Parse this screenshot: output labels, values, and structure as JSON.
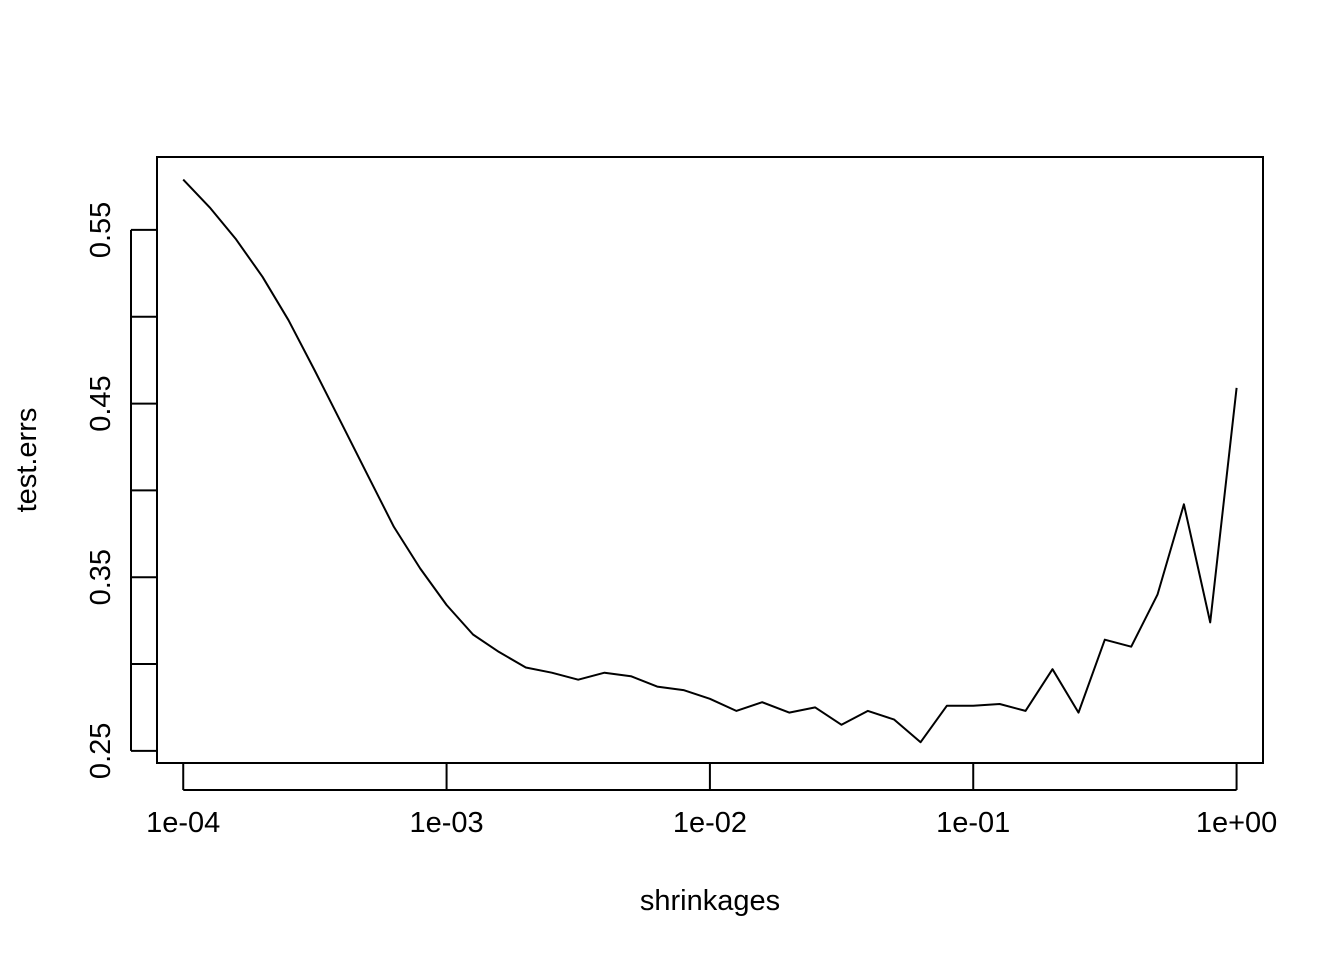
{
  "chart_data": {
    "type": "line",
    "xlabel": "shrinkages",
    "ylabel": "test.errs",
    "x_scale": "log",
    "xlim": [
      7.95e-05,
      1.26
    ],
    "ylim": [
      0.243,
      0.592
    ],
    "x_ticks": [
      0.0001,
      0.001,
      0.01,
      0.1,
      1
    ],
    "x_tick_labels": [
      "1e-04",
      "1e-03",
      "1e-02",
      "1e-01",
      "1e+00"
    ],
    "y_ticks": [
      0.25,
      0.3,
      0.35,
      0.4,
      0.45,
      0.5,
      0.55
    ],
    "y_tick_labels": [
      "0.25",
      "",
      "0.35",
      "",
      "0.45",
      "",
      "0.55"
    ],
    "grid": false,
    "series": [
      {
        "x": [
          0.0001,
          0.000126,
          0.000158,
          0.0002,
          0.000251,
          0.000316,
          0.000398,
          0.000501,
          0.000631,
          0.000794,
          0.001,
          0.00126,
          0.00158,
          0.002,
          0.00251,
          0.00316,
          0.00398,
          0.00501,
          0.00631,
          0.00794,
          0.01,
          0.0126,
          0.0158,
          0.02,
          0.0251,
          0.0316,
          0.0398,
          0.0501,
          0.0631,
          0.0794,
          0.1,
          0.126,
          0.158,
          0.2,
          0.251,
          0.316,
          0.398,
          0.501,
          0.631,
          0.794,
          1
        ],
        "values": [
          0.579,
          0.563,
          0.545,
          0.523,
          0.498,
          0.469,
          0.439,
          0.409,
          0.379,
          0.355,
          0.334,
          0.317,
          0.307,
          0.298,
          0.295,
          0.291,
          0.295,
          0.293,
          0.287,
          0.285,
          0.28,
          0.273,
          0.278,
          0.272,
          0.275,
          0.265,
          0.273,
          0.268,
          0.255,
          0.276,
          0.276,
          0.277,
          0.273,
          0.297,
          0.272,
          0.314,
          0.31,
          0.34,
          0.392,
          0.324,
          0.459
        ]
      }
    ]
  }
}
